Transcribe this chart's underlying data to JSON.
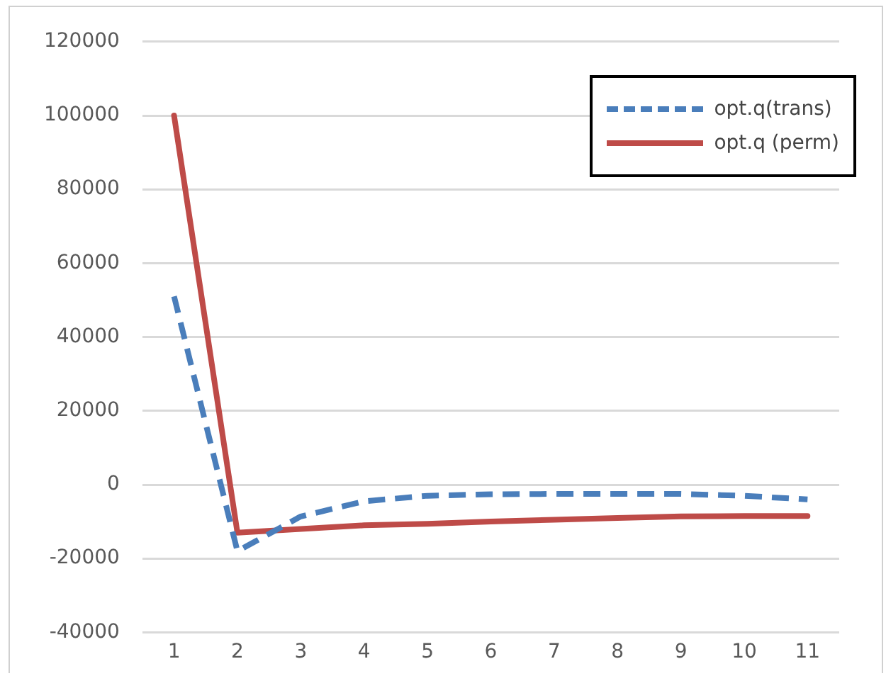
{
  "chart_data": {
    "type": "line",
    "categories": [
      "1",
      "2",
      "3",
      "4",
      "5",
      "6",
      "7",
      "8",
      "9",
      "10",
      "11"
    ],
    "series": [
      {
        "name": "opt.q(trans)",
        "color": "#4a7ebb",
        "line_style": "dashed",
        "values": [
          51000,
          -18000,
          -8600,
          -4500,
          -3000,
          -2600,
          -2500,
          -2500,
          -2500,
          -3000,
          -4000
        ]
      },
      {
        "name": "opt.q (perm)",
        "color": "#be4b48",
        "line_style": "solid",
        "values": [
          100000,
          -13000,
          -12000,
          -11000,
          -10600,
          -10000,
          -9500,
          -9000,
          -8600,
          -8500,
          -8500
        ]
      }
    ],
    "ylim": [
      -40000,
      120000
    ],
    "yticks": [
      -40000,
      -20000,
      0,
      20000,
      40000,
      60000,
      80000,
      100000,
      120000
    ],
    "grid": "y",
    "legend": "top right",
    "marker": "none"
  }
}
